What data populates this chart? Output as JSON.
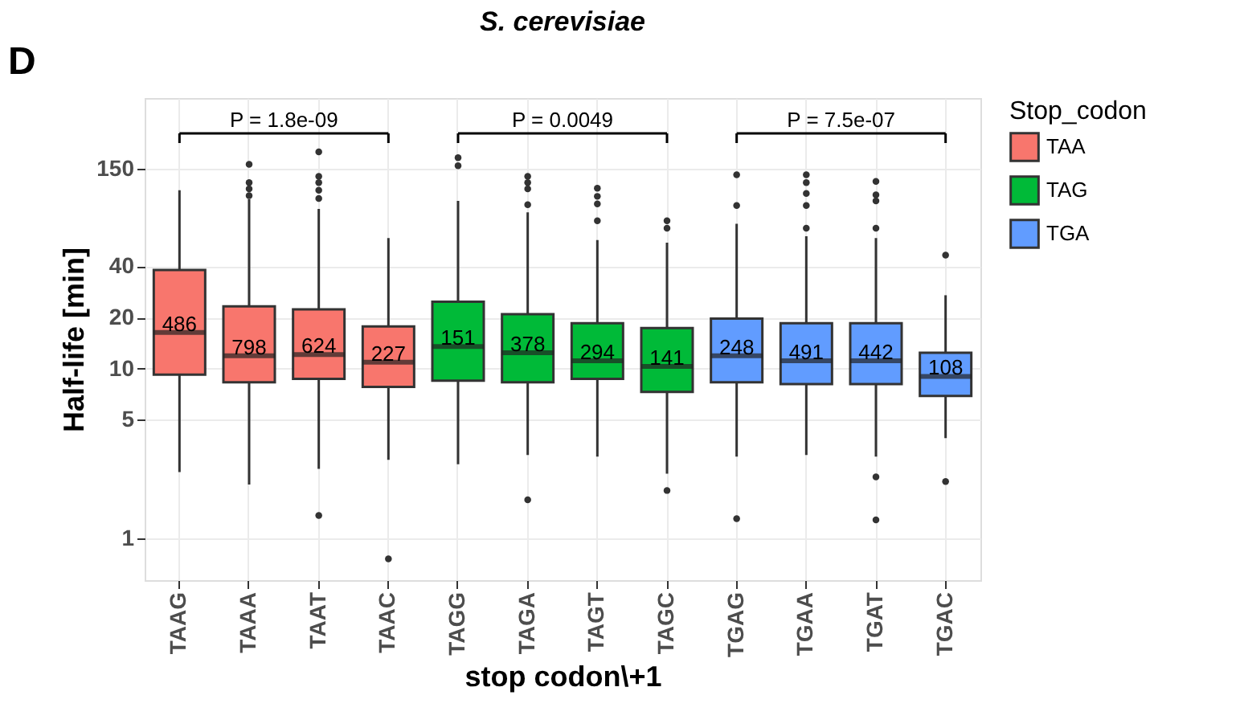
{
  "chart_data": {
    "type": "box",
    "title": "S. cerevisiae",
    "xlabel": "stop codon\\+1",
    "ylabel": "Half-life [min]",
    "legend_title": "Stop_codon",
    "legend": "right",
    "grid": true,
    "log": true,
    "categories": [
      "TAAG",
      "TAAA",
      "TAAT",
      "TAAC",
      "TAGG",
      "TAGA",
      "TAGT",
      "TAGC",
      "TGAG",
      "TGAA",
      "TGAT",
      "TGAC"
    ],
    "ylim": [
      0.57,
      390
    ],
    "yticks": [
      1,
      5,
      10,
      20,
      40,
      150
    ],
    "series": [
      {
        "name": "TAA",
        "color": "#f8766d",
        "boxes": [
          {
            "low": 2.46,
            "q1": 9.2,
            "median": 16.3,
            "q3": 38,
            "high": 112
          },
          {
            "low": 2.08,
            "q1": 8.3,
            "median": 11.9,
            "q3": 23.2,
            "high": 99,
            "outliers": [
              159,
              124,
              114,
              104
            ]
          },
          {
            "low": 2.57,
            "q1": 8.7,
            "median": 12.1,
            "q3": 22.3,
            "high": 87,
            "outliers": [
              188,
              135,
              124,
              112,
              100,
              1.37
            ]
          },
          {
            "low": 2.91,
            "q1": 7.8,
            "median": 10.9,
            "q3": 17.7,
            "high": 58.5,
            "outliers": [
              0.76
            ]
          },
          null,
          null,
          null,
          null,
          null,
          null,
          null,
          null
        ]
      },
      {
        "name": "TAG",
        "color": "#00ba38",
        "boxes": [
          null,
          null,
          null,
          null,
          {
            "low": 2.74,
            "q1": 8.5,
            "median": 13.5,
            "q3": 24.7,
            "high": 97,
            "outliers": [
              174,
              156
            ]
          },
          {
            "low": 3.1,
            "q1": 8.3,
            "median": 12.4,
            "q3": 20.9,
            "high": 83,
            "outliers": [
              135,
              124,
              114,
              92,
              1.69
            ]
          },
          {
            "low": 3.04,
            "q1": 8.7,
            "median": 11.1,
            "q3": 18.5,
            "high": 57,
            "outliers": [
              115,
              103,
              93,
              74
            ]
          },
          {
            "low": 2.41,
            "q1": 7.3,
            "median": 10.3,
            "q3": 17.3,
            "high": 55,
            "outliers": [
              74,
              67,
              1.92
            ]
          },
          null,
          null,
          null,
          null
        ]
      },
      {
        "name": "TGA",
        "color": "#619cff",
        "boxes": [
          null,
          null,
          null,
          null,
          null,
          null,
          null,
          null,
          {
            "low": 3.04,
            "q1": 8.3,
            "median": 11.9,
            "q3": 19.7,
            "high": 71,
            "outliers": [
              138,
              91,
              1.31
            ]
          },
          {
            "low": 3.1,
            "q1": 8.1,
            "median": 11.1,
            "q3": 18.5,
            "high": 60,
            "outliers": [
              138,
              124,
              107,
              91,
              67
            ]
          },
          {
            "low": 3.04,
            "q1": 8.1,
            "median": 11.1,
            "q3": 18.5,
            "high": 58.5,
            "outliers": [
              126,
              105,
              97,
              67,
              2.31,
              1.29
            ]
          },
          {
            "low": 3.9,
            "q1": 6.9,
            "median": 9.0,
            "q3": 12.4,
            "high": 27,
            "outliers": [
              46.5,
              2.17
            ]
          }
        ]
      }
    ],
    "annotations": [
      "D",
      {
        "text": "486",
        "x": "TAAG",
        "y": 16.3
      },
      {
        "text": "798",
        "x": "TAAA",
        "y": 11.9
      },
      {
        "text": "624",
        "x": "TAAT",
        "y": 12.1
      },
      {
        "text": "227",
        "x": "TAAC",
        "y": 10.9
      },
      {
        "text": "151",
        "x": "TAGG",
        "y": 13.5
      },
      {
        "text": "378",
        "x": "TAGA",
        "y": 12.4
      },
      {
        "text": "294",
        "x": "TAGT",
        "y": 11.1
      },
      {
        "text": "141",
        "x": "TAGC",
        "y": 10.3
      },
      {
        "text": "248",
        "x": "TGAG",
        "y": 11.9
      },
      {
        "text": "491",
        "x": "TGAA",
        "y": 11.1
      },
      {
        "text": "442",
        "x": "TGAT",
        "y": 11.1
      },
      {
        "text": "108",
        "x": "TGAC",
        "y": 9.0
      },
      "P = 1.8e-09",
      "P = 0.0049",
      "P = 7.5e-07"
    ]
  }
}
